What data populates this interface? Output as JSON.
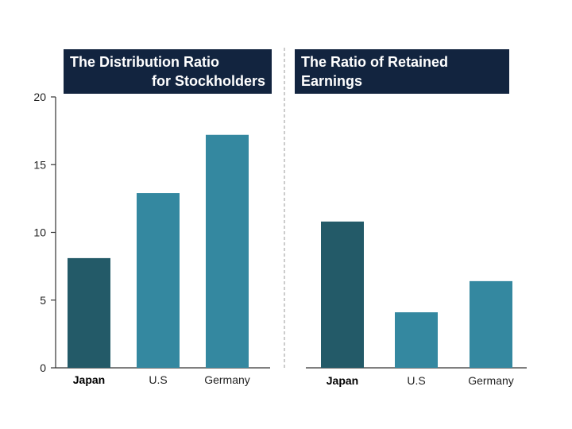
{
  "chart_data": [
    {
      "type": "bar",
      "title_line1": "The Distribution Ratio",
      "title_line2": "for Stockholders",
      "categories": [
        "Japan",
        "U.S",
        "Germany"
      ],
      "values": [
        8.1,
        12.9,
        17.2
      ],
      "bar_colors": [
        "#235a68",
        "#3488a0",
        "#3488a0"
      ],
      "bold_categories": [
        "Japan"
      ],
      "ylim": [
        0,
        20
      ],
      "yticks": [
        0,
        5,
        10,
        15,
        20
      ],
      "grid": false
    },
    {
      "type": "bar",
      "title": "The Ratio of Retained Earnings",
      "categories": [
        "Japan",
        "U.S",
        "Germany"
      ],
      "values": [
        10.8,
        4.1,
        6.4
      ],
      "bar_colors": [
        "#235a68",
        "#3488a0",
        "#3488a0"
      ],
      "bold_categories": [
        "Japan"
      ],
      "ylim": [
        0,
        20
      ],
      "grid": false
    }
  ]
}
